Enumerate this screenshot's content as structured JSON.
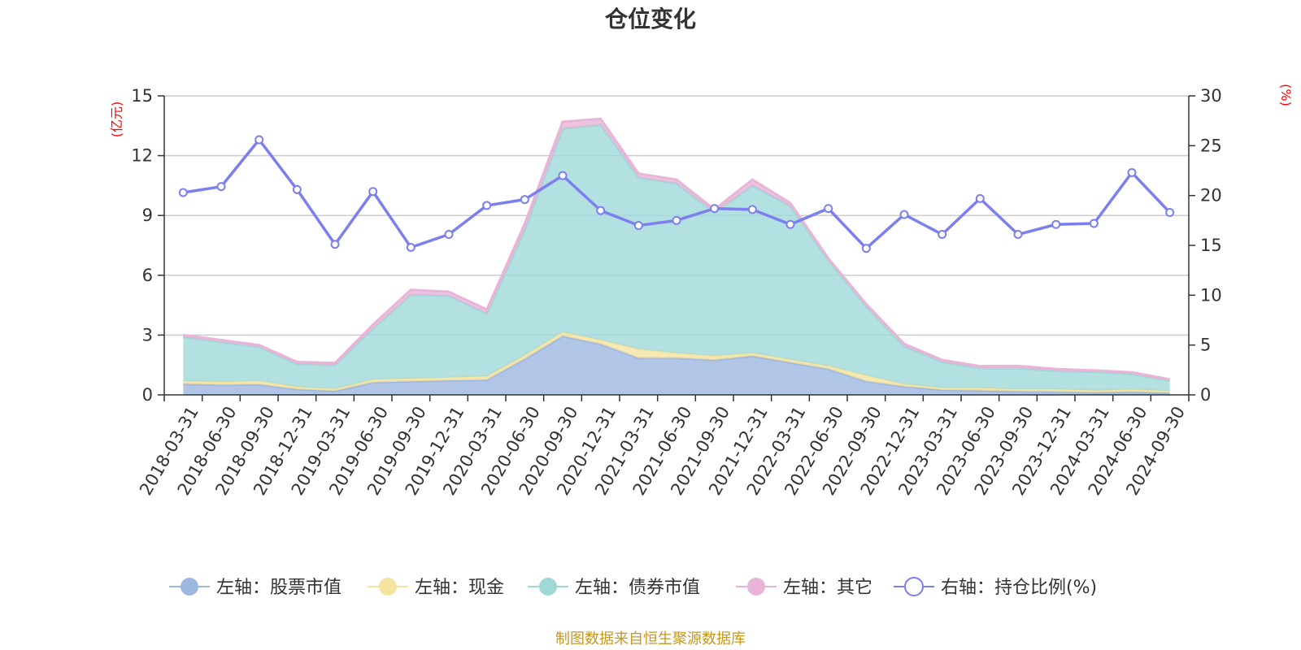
{
  "chart_data": {
    "type": "area",
    "title": "仓位变化",
    "left_axis": {
      "unit": "(亿元)",
      "ylim": [
        0,
        15
      ],
      "ticks": [
        0,
        3,
        6,
        9,
        12,
        15
      ]
    },
    "right_axis": {
      "unit": "(%)",
      "ylim": [
        0,
        30
      ],
      "ticks": [
        0,
        5,
        10,
        15,
        20,
        25,
        30
      ]
    },
    "categories": [
      "2018-03-31",
      "2018-06-30",
      "2018-09-30",
      "2018-12-31",
      "2019-03-31",
      "2019-06-30",
      "2019-09-30",
      "2019-12-31",
      "2020-03-31",
      "2020-06-30",
      "2020-09-30",
      "2020-12-31",
      "2021-03-31",
      "2021-06-30",
      "2021-09-30",
      "2021-12-31",
      "2022-03-31",
      "2022-06-30",
      "2022-09-30",
      "2022-12-31",
      "2023-03-31",
      "2023-06-30",
      "2023-09-30",
      "2023-12-31",
      "2024-03-31",
      "2024-06-30",
      "2024-09-30"
    ],
    "series": [
      {
        "name": "左轴：股票市值",
        "axis": "left",
        "stack": true,
        "color": "#9db7e0",
        "values": [
          0.55,
          0.5,
          0.52,
          0.28,
          0.2,
          0.62,
          0.68,
          0.72,
          0.75,
          1.8,
          2.95,
          2.55,
          1.85,
          1.85,
          1.75,
          1.95,
          1.62,
          1.3,
          0.68,
          0.42,
          0.25,
          0.22,
          0.18,
          0.16,
          0.12,
          0.15,
          0.1
        ]
      },
      {
        "name": "左轴：现金",
        "axis": "left",
        "stack": true,
        "color": "#f5e3a0",
        "values": [
          0.15,
          0.15,
          0.18,
          0.12,
          0.1,
          0.15,
          0.14,
          0.15,
          0.18,
          0.18,
          0.2,
          0.2,
          0.45,
          0.25,
          0.2,
          0.15,
          0.15,
          0.15,
          0.3,
          0.12,
          0.1,
          0.12,
          0.1,
          0.12,
          0.1,
          0.12,
          0.1
        ]
      },
      {
        "name": "左轴：债券市值",
        "axis": "left",
        "stack": true,
        "color": "#a0d8d8",
        "values": [
          2.2,
          2.0,
          1.7,
          1.15,
          1.2,
          2.55,
          4.2,
          4.1,
          3.15,
          6.3,
          10.2,
          10.8,
          8.6,
          8.5,
          7.2,
          8.4,
          7.7,
          5.3,
          3.45,
          1.9,
          1.3,
          1.0,
          1.05,
          0.92,
          0.93,
          0.78,
          0.5
        ]
      },
      {
        "name": "左轴：其它",
        "axis": "left",
        "stack": true,
        "color": "#e8b4d8",
        "values": [
          0.1,
          0.1,
          0.1,
          0.1,
          0.1,
          0.2,
          0.25,
          0.2,
          0.2,
          0.3,
          0.35,
          0.3,
          0.2,
          0.2,
          0.15,
          0.3,
          0.15,
          0.1,
          0.12,
          0.12,
          0.1,
          0.1,
          0.12,
          0.1,
          0.08,
          0.08,
          0.08
        ]
      },
      {
        "name": "右轴：持仓比例(%)",
        "axis": "right",
        "stack": false,
        "color": "#7b7fef",
        "values": [
          20.3,
          20.9,
          25.6,
          20.6,
          15.1,
          20.4,
          14.8,
          16.1,
          19.0,
          19.6,
          22.0,
          18.5,
          17.0,
          17.5,
          18.7,
          18.6,
          17.1,
          18.7,
          14.7,
          18.1,
          16.1,
          19.7,
          16.1,
          17.1,
          17.2,
          22.3,
          18.3
        ]
      }
    ],
    "legend_position": "bottom",
    "grid": true
  },
  "source_note": "制图数据来自恒生聚源数据库"
}
